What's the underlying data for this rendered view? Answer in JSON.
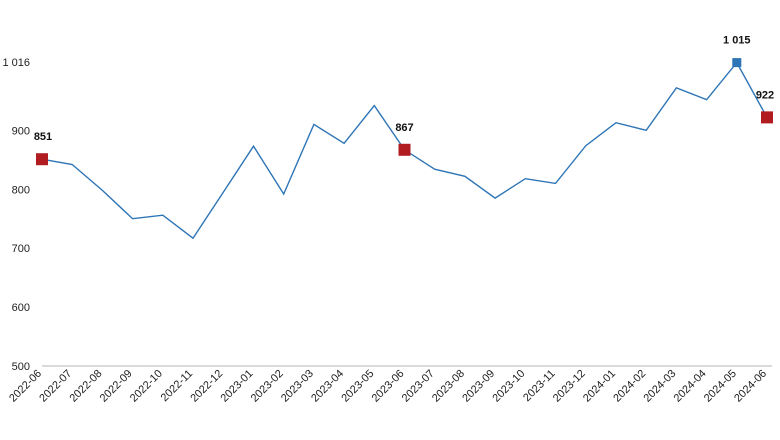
{
  "chart_data": {
    "type": "line",
    "title": "",
    "xlabel": "",
    "ylabel": "",
    "ylim": [
      500,
      1016
    ],
    "yticks": [
      500,
      600,
      700,
      800,
      900,
      1016
    ],
    "ytick_labels": [
      "500",
      "600",
      "700",
      "800",
      "900",
      "1 016"
    ],
    "grid": false,
    "categories": [
      "2022-06",
      "2022-07",
      "2022-08",
      "2022-09",
      "2022-10",
      "2022-11",
      "2022-12",
      "2023-01",
      "2023-02",
      "2023-03",
      "2023-04",
      "2023-05",
      "2023-06",
      "2023-07",
      "2023-08",
      "2023-09",
      "2023-10",
      "2023-11",
      "2023-12",
      "2024-01",
      "2024-02",
      "2024-03",
      "2024-04",
      "2024-05",
      "2024-06"
    ],
    "series": [
      {
        "color": "#2e75b6",
        "values": [
          851,
          842,
          798,
          750,
          756,
          717,
          795,
          873,
          792,
          910,
          878,
          942,
          867,
          834,
          822,
          785,
          818,
          810,
          874,
          913,
          900,
          972,
          952,
          1015,
          922
        ]
      }
    ],
    "highlights": [
      {
        "index": 0,
        "label": "851",
        "color": "#b01c20"
      },
      {
        "index": 12,
        "label": "867",
        "color": "#b01c20"
      },
      {
        "index": 23,
        "label": "1 015",
        "color": "#2e75b6"
      },
      {
        "index": 24,
        "label": "922",
        "color": "#b01c20"
      }
    ]
  }
}
